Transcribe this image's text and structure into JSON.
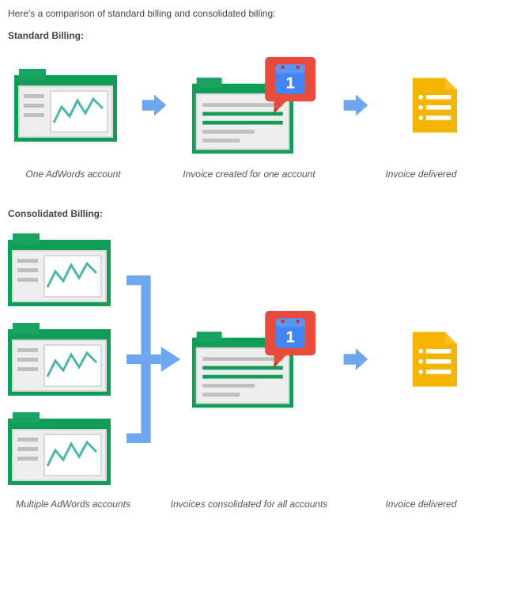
{
  "intro": "Here's a comparison of standard billing and consolidated billing:",
  "sections": {
    "standard": {
      "title": "Standard Billing:"
    },
    "consolidated": {
      "title": "Consolidated Billing:"
    }
  },
  "captions": {
    "one_account": "One AdWords account",
    "invoice_one": "Invoice created for one account",
    "delivered": "Invoice delivered",
    "multiple_accounts": "Multiple AdWords accounts",
    "invoice_all": "Invoices consolidated for all accounts"
  },
  "layout": {
    "col_widths": {
      "account": 145,
      "arrow1": 80,
      "invoice": 175,
      "arrow2": 80,
      "doc": 120
    },
    "caption_widths": {
      "account": 165,
      "middle": 280,
      "doc": 155
    }
  },
  "colors": {
    "green_dark": "#0f9d58",
    "green_mid": "#1aa261",
    "content_bg": "#eeeeee",
    "content_border": "#d9d9d9",
    "gray_line": "#bfbfbf",
    "green_line": "#0f9d58",
    "chart_line": "#4db6ac",
    "arrow_blue": "#6ea6f0",
    "badge_red": "#e74c3c",
    "badge_tail": "#c0392b",
    "cal_blue": "#4285f4",
    "cal_blue_inner": "#5a95f5",
    "cal_dot_red": "#d93025",
    "invoice_yellow": "#f4b400",
    "invoice_fold": "#fbc02d",
    "white": "#ffffff",
    "connector_blue": "#6ea6f0"
  },
  "calendar_number": "1",
  "fontsize_body": 12,
  "fontsize_caption": 12
}
